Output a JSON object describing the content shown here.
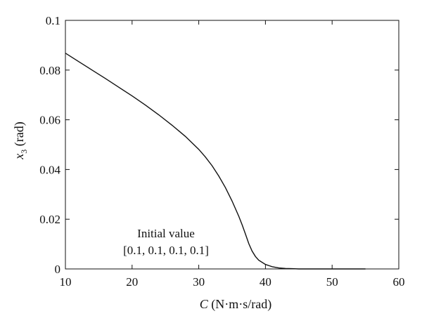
{
  "chart_data": {
    "type": "line",
    "title": "",
    "xlabel": {
      "symbol": "C",
      "unit": " (N·m·s/rad)"
    },
    "ylabel": {
      "symbol": "x",
      "subscript": "3",
      "unit": " (rad)"
    },
    "xlim": [
      10,
      60
    ],
    "ylim": [
      0,
      0.1
    ],
    "xticks": [
      10,
      20,
      30,
      40,
      50,
      60
    ],
    "yticks": [
      0,
      0.02,
      0.04,
      0.06,
      0.08,
      0.1
    ],
    "xtick_labels": [
      "10",
      "20",
      "30",
      "40",
      "50",
      "60"
    ],
    "ytick_labels": [
      "0",
      "0.02",
      "0.04",
      "0.06",
      "0.08",
      "0.1"
    ],
    "grid": false,
    "annotation": {
      "line1": "Initial value",
      "line2": "[0.1, 0.1, 0.1, 0.1]"
    },
    "series": [
      {
        "color": "#111111",
        "x": [
          10,
          12,
          14,
          16,
          18,
          20,
          22,
          24,
          26,
          28,
          30,
          31,
          32,
          33,
          34,
          35,
          36,
          36.5,
          37,
          37.5,
          38,
          38.5,
          39,
          40,
          41,
          42,
          43,
          44,
          45,
          47,
          50,
          55
        ],
        "y": [
          0.0868,
          0.0834,
          0.08,
          0.0766,
          0.0731,
          0.0696,
          0.0659,
          0.062,
          0.0578,
          0.0533,
          0.0481,
          0.045,
          0.0415,
          0.0374,
          0.0327,
          0.0273,
          0.0212,
          0.0178,
          0.014,
          0.0102,
          0.0072,
          0.005,
          0.0035,
          0.0018,
          0.0009,
          0.0004,
          0.0002,
          0.0001,
          0.0,
          0.0,
          0.0,
          0.0
        ]
      }
    ]
  }
}
